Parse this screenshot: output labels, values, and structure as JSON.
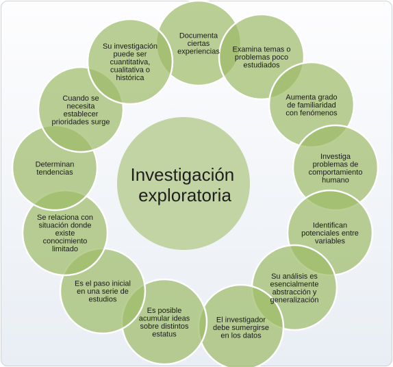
{
  "center": {
    "lines": [
      "Investigación",
      "exploratoria"
    ]
  },
  "nodes": [
    {
      "id": "documenta",
      "name": "node-documenta",
      "lines": [
        "Documenta",
        "ciertas",
        "experiencias"
      ]
    },
    {
      "id": "examina",
      "name": "node-examina-temas",
      "lines": [
        "Examina temas o",
        "problemas poco",
        "estudiados"
      ]
    },
    {
      "id": "aumenta",
      "name": "node-aumenta-grado",
      "lines": [
        "Aumenta grado",
        "de familiaridad",
        "con fenómenos"
      ]
    },
    {
      "id": "investiga",
      "name": "node-investiga-problemas",
      "lines": [
        "Investiga",
        "problemas de",
        "comportamiento",
        "humano"
      ]
    },
    {
      "id": "identifican",
      "name": "node-identifican-variables",
      "lines": [
        "Identifican",
        "potenciales entre",
        "variables"
      ]
    },
    {
      "id": "analisis",
      "name": "node-su-analisis",
      "lines": [
        "Su análisis es",
        "esencialmente",
        "abstracción y",
        "generalización"
      ]
    },
    {
      "id": "investigador",
      "name": "node-investigador-sumergirse",
      "lines": [
        "El investigador",
        "debe sumergirse",
        "en los datos"
      ]
    },
    {
      "id": "acumular",
      "name": "node-acumular-ideas",
      "lines": [
        "Es posible",
        "acumular ideas",
        "sobre distintos",
        "estatus"
      ]
    },
    {
      "id": "paso",
      "name": "node-paso-inicial",
      "lines": [
        "Es el paso inicial",
        "en una serie de",
        "estudios"
      ]
    },
    {
      "id": "relaciona",
      "name": "node-se-relaciona",
      "lines": [
        "Se relaciona con",
        "situación donde",
        "existe",
        "conocimiento",
        "limitado"
      ]
    },
    {
      "id": "determinan",
      "name": "node-determinan-tendencias",
      "lines": [
        "Determinan",
        "tendencias"
      ]
    },
    {
      "id": "prioridades",
      "name": "node-prioridades",
      "lines": [
        "Cuando se",
        "necesita",
        "establecer",
        "prioridades surge"
      ]
    },
    {
      "id": "cuantitativa",
      "name": "node-tipo-investigacion",
      "lines": [
        "Su investigación",
        "puede ser",
        "cuantitativa,",
        "cualitativa o",
        "histórica"
      ]
    }
  ],
  "colors": {
    "center_fill": "#c2d3a4",
    "node_fill": "#9dbb66",
    "node_fill_light": "#c4d5a6",
    "node_stroke": "#ffffff",
    "text": "#1a1a1a"
  }
}
